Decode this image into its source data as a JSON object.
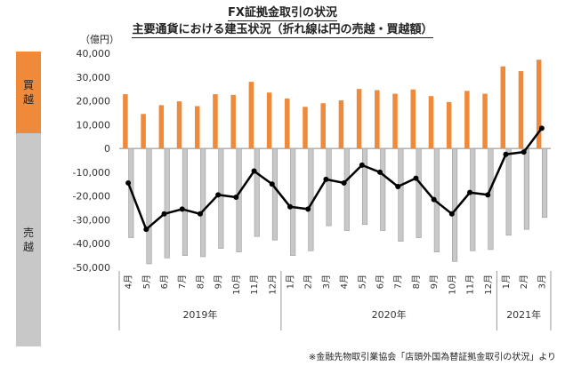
{
  "titles": {
    "line1": "FX証拠金取引の状況",
    "line2": "主要通貨における建玉状況（折れ線は円の売越・買越額）"
  },
  "unit_label": "（億円）",
  "side_labels": {
    "buy": [
      "買",
      "越"
    ],
    "sell": [
      "売",
      "越"
    ]
  },
  "source": "※金融先物取引業協会「店頭外国為替証拠金取引の状況」より",
  "colors": {
    "buy": "#ee8a3a",
    "sell": "#c8c8c8",
    "sell_stroke": "#9a9a9a",
    "line": "#000000"
  },
  "chart_data": {
    "type": "bar",
    "categories": [
      "4月",
      "5月",
      "6月",
      "7月",
      "8月",
      "9月",
      "10月",
      "11月",
      "12月",
      "1月",
      "2月",
      "3月",
      "4月",
      "5月",
      "6月",
      "7月",
      "8月",
      "9月",
      "10月",
      "11月",
      "12月",
      "1月",
      "2月",
      "3月"
    ],
    "year_groups": [
      {
        "label": "2019年",
        "count": 9
      },
      {
        "label": "2020年",
        "count": 12
      },
      {
        "label": "2021年",
        "count": 3
      }
    ],
    "series": [
      {
        "type": "bar",
        "values": [
          22800,
          14500,
          18200,
          19800,
          17800,
          22800,
          22500,
          28000,
          23500,
          21000,
          17500,
          19000,
          20200,
          25000,
          24500,
          23000,
          24800,
          22000,
          19500,
          24200,
          23000,
          34500,
          32500,
          37300
        ]
      },
      {
        "type": "bar",
        "values": [
          -37500,
          -48500,
          -46000,
          -45000,
          -45500,
          -42000,
          -43500,
          -37000,
          -38500,
          -45000,
          -43000,
          -32500,
          -34500,
          -32000,
          -34500,
          -39000,
          -37500,
          -43500,
          -47500,
          -43000,
          -42500,
          -36500,
          -34000,
          -29000
        ]
      },
      {
        "type": "line",
        "values": [
          -14500,
          -34000,
          -27500,
          -25500,
          -27500,
          -19500,
          -20500,
          -9500,
          -15000,
          -24500,
          -25500,
          -13000,
          -14500,
          -7000,
          -10000,
          -16000,
          -12500,
          -21500,
          -27500,
          -18500,
          -19500,
          -2500,
          -1500,
          8500
        ]
      }
    ],
    "ylim": [
      -50000,
      40000
    ],
    "yticks": [
      "40,000",
      "30,000",
      "20,000",
      "10,000",
      "0",
      "-10,000",
      "-20,000",
      "-30,000",
      "-40,000",
      "-50,000"
    ]
  }
}
